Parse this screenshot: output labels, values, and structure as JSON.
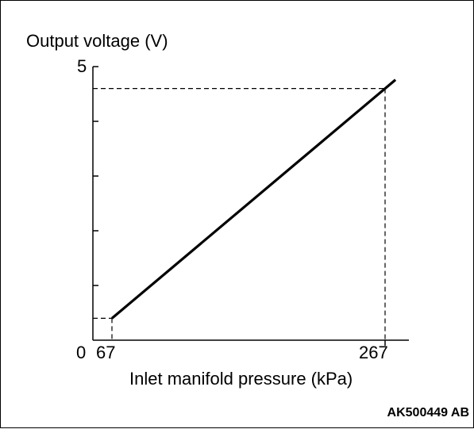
{
  "chart_data": {
    "type": "line",
    "title": "",
    "ylabel": "Output voltage (V)",
    "xlabel": "Inlet manifold pressure (kPa)",
    "origin_label": "0",
    "y_tick_label": "5",
    "x_tick_labels": [
      "67",
      "267"
    ],
    "ylim": [
      0,
      5
    ],
    "xlim": [
      0,
      300
    ],
    "y_minor_ticks": [
      1,
      2,
      3,
      4,
      5
    ],
    "series": [
      {
        "x": [
          67,
          267
        ],
        "y": [
          0.4,
          4.6
        ]
      }
    ],
    "reference_lines": [
      {
        "x": 67,
        "y": 0.4
      },
      {
        "x": 267,
        "y": 4.6
      }
    ],
    "grid": false,
    "legend": "none",
    "line_color": "#000000"
  },
  "figure_code": "AK500449 AB"
}
